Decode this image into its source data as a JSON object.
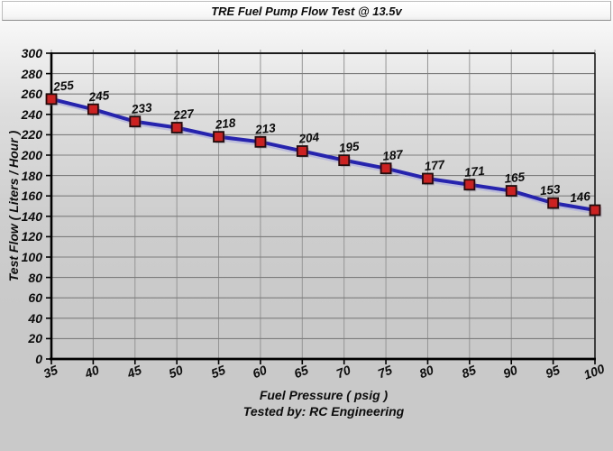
{
  "window": {
    "title": "TRE Fuel Pump Flow Test @ 13.5v"
  },
  "chart_data": {
    "type": "line",
    "title": "TRE Fuel Pump Flow Test @ 13.5v",
    "x": [
      35,
      40,
      45,
      50,
      55,
      60,
      65,
      70,
      75,
      80,
      85,
      90,
      95,
      100
    ],
    "values": [
      255,
      245,
      233,
      227,
      218,
      213,
      204,
      195,
      187,
      177,
      171,
      165,
      153,
      146
    ],
    "point_labels": [
      "255",
      "245",
      "233",
      "227",
      "218",
      "213",
      "204",
      "195",
      "187",
      "177",
      "171",
      "165",
      "153",
      "146"
    ],
    "xlabel": "Fuel Pressure ( psig )",
    "ylabel": "Test Flow ( Liters / Hour )",
    "footer": "Tested by: RC Engineering",
    "xlim": [
      35,
      100
    ],
    "ylim": [
      0,
      300
    ],
    "xtick_step": 5,
    "ytick_step": 20,
    "grid": true,
    "legend": false,
    "colors": {
      "line": "#2624ae",
      "line_shadow": "#b6b6da",
      "marker_fill": "#cd2121",
      "marker_border": "#1f0d0d",
      "grid_horizontal": "#7c7c7c",
      "grid_vertical": "#959595",
      "axis": "#000000",
      "tick_text": "#0d0d0d"
    }
  }
}
